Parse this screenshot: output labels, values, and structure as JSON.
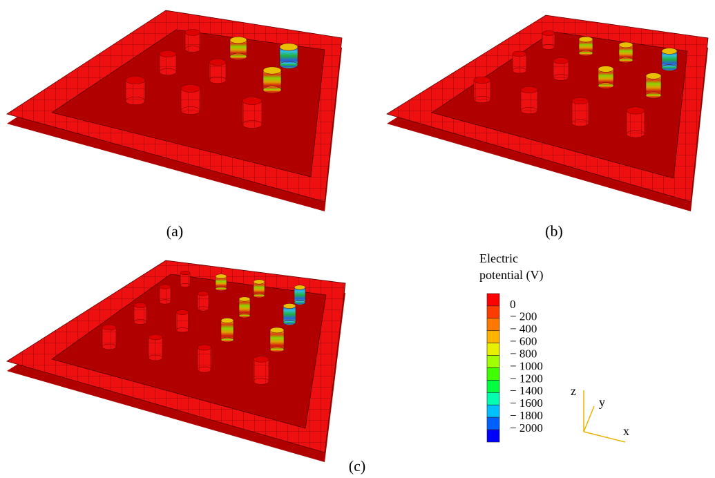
{
  "panels": [
    {
      "label": "(a)"
    },
    {
      "label": "(b)"
    },
    {
      "label": "(c)"
    }
  ],
  "legend": {
    "title_lines": [
      "Electric",
      "potential (V)"
    ],
    "ticks": [
      "0",
      "− 200",
      "− 400",
      "− 600",
      "− 800",
      "− 1000",
      "− 1200",
      "− 1400",
      "− 1600",
      "− 1800",
      "− 2000"
    ]
  },
  "triad": {
    "z": "z",
    "y": "y",
    "x": "x"
  }
}
